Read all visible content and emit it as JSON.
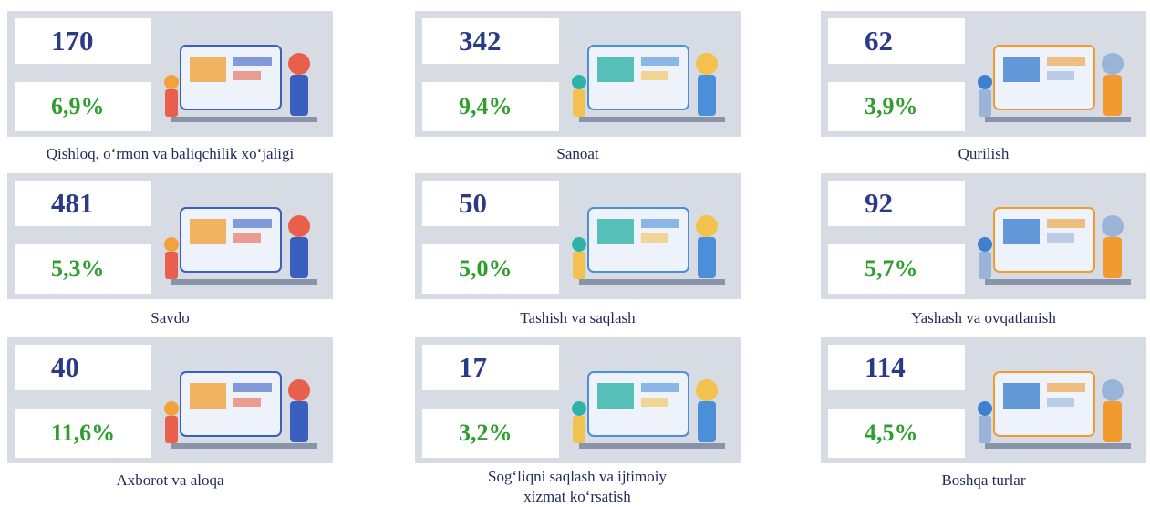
{
  "cards": [
    {
      "value": "170",
      "percent": "6,9%",
      "label": "Qishloq, o‘rmon va baliqchilik xo‘jaligi"
    },
    {
      "value": "342",
      "percent": "9,4%",
      "label": "Sanoat"
    },
    {
      "value": "62",
      "percent": "3,9%",
      "label": "Qurilish"
    },
    {
      "value": "481",
      "percent": "5,3%",
      "label": "Savdo"
    },
    {
      "value": "50",
      "percent": "5,0%",
      "label": "Tashish va saqlash"
    },
    {
      "value": "92",
      "percent": "5,7%",
      "label": "Yashash va ovqatlanish"
    },
    {
      "value": "40",
      "percent": "11,6%",
      "label": "Axborot va aloqa"
    },
    {
      "value": "17",
      "percent": "3,2%",
      "label": "Sog‘liqni saqlash va ijtimoiy xizmat ko‘rsatish"
    },
    {
      "value": "114",
      "percent": "4,5%",
      "label": "Boshqa turlar"
    }
  ]
}
